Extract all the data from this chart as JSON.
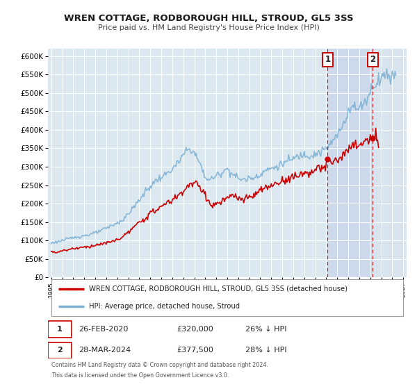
{
  "title": "WREN COTTAGE, RODBOROUGH HILL, STROUD, GL5 3SS",
  "subtitle": "Price paid vs. HM Land Registry's House Price Index (HPI)",
  "plot_bg_color": "#dce8f0",
  "shaded_bg_color": "#ccdaeb",
  "ylim": [
    0,
    620000
  ],
  "yticks": [
    0,
    50000,
    100000,
    150000,
    200000,
    250000,
    300000,
    350000,
    400000,
    450000,
    500000,
    550000,
    600000
  ],
  "xlim_start": 1994.7,
  "xlim_end": 2027.3,
  "xticks": [
    1995,
    1996,
    1997,
    1998,
    1999,
    2000,
    2001,
    2002,
    2003,
    2004,
    2005,
    2006,
    2007,
    2008,
    2009,
    2010,
    2011,
    2012,
    2013,
    2014,
    2015,
    2016,
    2017,
    2018,
    2019,
    2020,
    2021,
    2022,
    2023,
    2024,
    2025,
    2026,
    2027
  ],
  "red_color": "#cc0000",
  "blue_color": "#7ab0d4",
  "marker1_date": 2020.12,
  "marker1_price": 320000,
  "marker2_date": 2024.23,
  "marker2_price": 377500,
  "vline1_x": 2020.12,
  "vline2_x": 2024.23,
  "legend_red_label": "WREN COTTAGE, RODBOROUGH HILL, STROUD, GL5 3SS (detached house)",
  "legend_blue_label": "HPI: Average price, detached house, Stroud",
  "table_row1": [
    "1",
    "26-FEB-2020",
    "£320,000",
    "26% ↓ HPI"
  ],
  "table_row2": [
    "2",
    "28-MAR-2024",
    "£377,500",
    "28% ↓ HPI"
  ],
  "footnote1": "Contains HM Land Registry data © Crown copyright and database right 2024.",
  "footnote2": "This data is licensed under the Open Government Licence v3.0."
}
